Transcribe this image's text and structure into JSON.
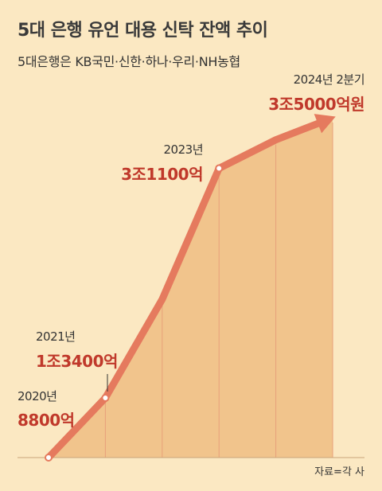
{
  "title": "5대 은행 유언 대용 신탁 잔액 추이",
  "subtitle": "5대은행은 KB국민·신한·하나·우리·NH농협",
  "source": "자료=각 사",
  "colors": {
    "background": "#fbe8c2",
    "area": "#f1c48c",
    "line": "#e57a5e",
    "value_text": "#c0392b",
    "grid": "#e8a07a"
  },
  "chart_data": {
    "type": "area",
    "x": [
      "2020년",
      "2021년",
      "",
      "2023년",
      "",
      "2024년 2분기"
    ],
    "values": [
      8800,
      13400,
      21000,
      31100,
      33300,
      35000
    ],
    "unit": "억",
    "ylim": [
      8800,
      35000
    ],
    "labels": [
      {
        "index": 0,
        "period": "2020년",
        "value": "8800억"
      },
      {
        "index": 1,
        "period": "2021년",
        "value": "1조3400억"
      },
      {
        "index": 3,
        "period": "2023년",
        "value": "3조1100억"
      },
      {
        "index": 5,
        "period": "2024년 2분기",
        "value": "3조5000억원"
      }
    ],
    "grid": true,
    "arrow_end": true
  }
}
